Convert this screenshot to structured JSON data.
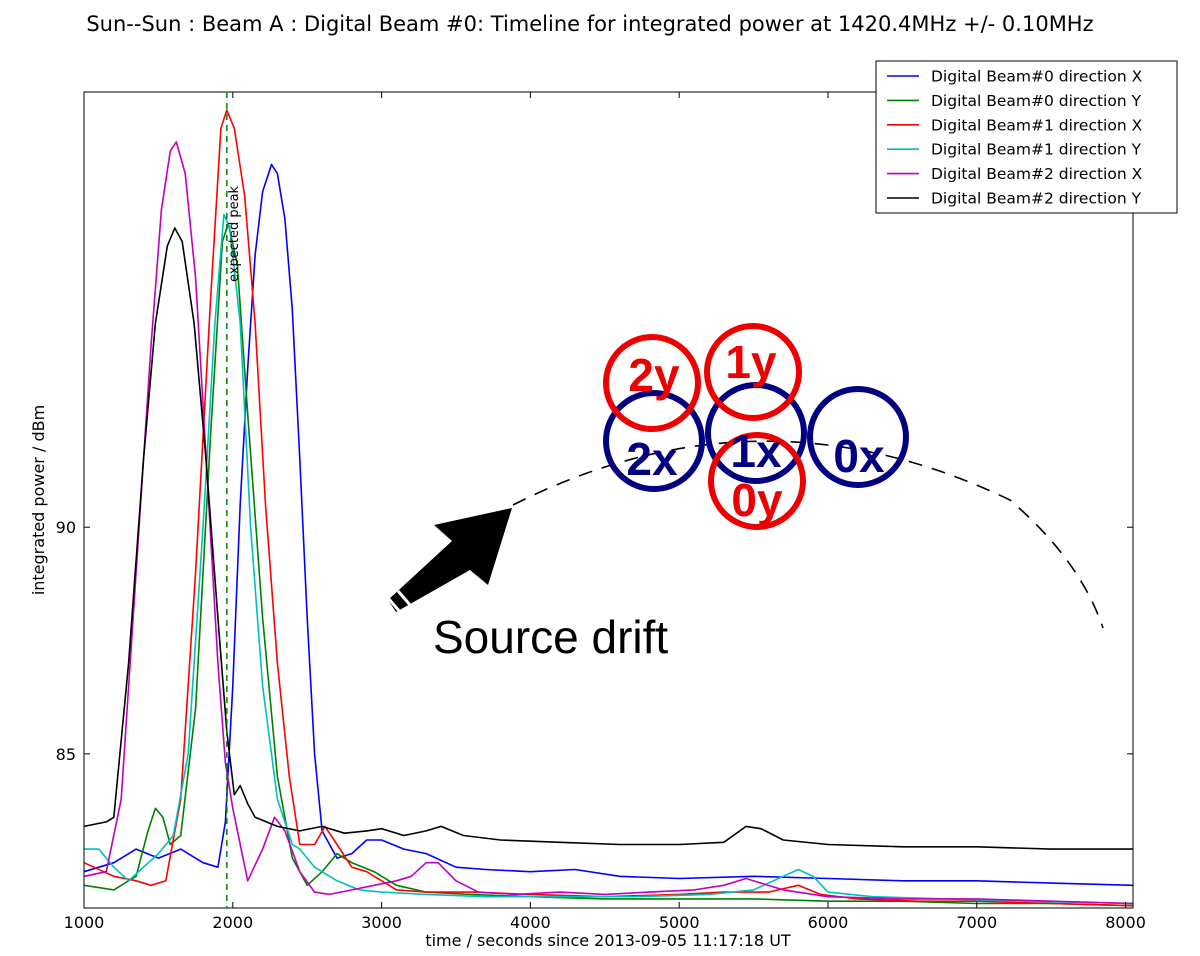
{
  "chart_data": {
    "type": "line",
    "title": "Sun--Sun : Beam A : Digital Beam #0: Timeline for integrated power at 1420.4MHz  +/-   0.10MHz",
    "xlabel": "time / seconds since 2013-09-05 11:17:18 UT",
    "ylabel": "integrated power / dBm",
    "xlim": [
      1000,
      8050
    ],
    "ylim": [
      81.6,
      99.6
    ],
    "x_ticks": [
      1000,
      2000,
      3000,
      4000,
      5000,
      6000,
      7000,
      8000
    ],
    "y_ticks": [
      85,
      90
    ],
    "legend_position": "top-right",
    "grid": false,
    "series": [
      {
        "name": "Digital Beam#0 direction X",
        "color": "#0000ff",
        "points": [
          [
            1000,
            82.4
          ],
          [
            1200,
            82.6
          ],
          [
            1350,
            82.9
          ],
          [
            1500,
            82.7
          ],
          [
            1650,
            82.9
          ],
          [
            1800,
            82.6
          ],
          [
            1900,
            82.5
          ],
          [
            1950,
            83.5
          ],
          [
            2000,
            86.5
          ],
          [
            2050,
            90.5
          ],
          [
            2100,
            93.5
          ],
          [
            2150,
            96.0
          ],
          [
            2200,
            97.4
          ],
          [
            2260,
            98.0
          ],
          [
            2300,
            97.8
          ],
          [
            2350,
            96.8
          ],
          [
            2400,
            94.8
          ],
          [
            2450,
            91.5
          ],
          [
            2500,
            88.0
          ],
          [
            2550,
            85.0
          ],
          [
            2600,
            83.3
          ],
          [
            2700,
            82.7
          ],
          [
            2800,
            82.8
          ],
          [
            2900,
            83.1
          ],
          [
            3000,
            83.1
          ],
          [
            3150,
            82.9
          ],
          [
            3300,
            82.8
          ],
          [
            3500,
            82.5
          ],
          [
            3700,
            82.45
          ],
          [
            4000,
            82.4
          ],
          [
            4300,
            82.45
          ],
          [
            4600,
            82.3
          ],
          [
            5000,
            82.25
          ],
          [
            5500,
            82.3
          ],
          [
            6000,
            82.25
          ],
          [
            6500,
            82.2
          ],
          [
            7000,
            82.2
          ],
          [
            7500,
            82.15
          ],
          [
            8050,
            82.1
          ]
        ]
      },
      {
        "name": "Digital Beam#0 direction Y",
        "color": "#008000",
        "points": [
          [
            1000,
            82.1
          ],
          [
            1200,
            82.0
          ],
          [
            1350,
            82.3
          ],
          [
            1430,
            83.3
          ],
          [
            1480,
            83.8
          ],
          [
            1530,
            83.6
          ],
          [
            1580,
            83.0
          ],
          [
            1650,
            83.2
          ],
          [
            1750,
            86.0
          ],
          [
            1850,
            92.0
          ],
          [
            1930,
            96.3
          ],
          [
            1970,
            96.7
          ],
          [
            2030,
            95.8
          ],
          [
            2100,
            92.5
          ],
          [
            2200,
            88.0
          ],
          [
            2300,
            84.5
          ],
          [
            2400,
            82.7
          ],
          [
            2500,
            82.1
          ],
          [
            2600,
            82.4
          ],
          [
            2700,
            82.8
          ],
          [
            2800,
            82.6
          ],
          [
            2950,
            82.4
          ],
          [
            3100,
            82.1
          ],
          [
            3300,
            81.95
          ],
          [
            3600,
            81.9
          ],
          [
            4000,
            81.85
          ],
          [
            4500,
            81.8
          ],
          [
            5000,
            81.8
          ],
          [
            5500,
            81.8
          ],
          [
            6000,
            81.75
          ],
          [
            6500,
            81.75
          ],
          [
            7000,
            81.7
          ],
          [
            7500,
            81.7
          ],
          [
            8050,
            81.65
          ]
        ]
      },
      {
        "name": "Digital Beam#1 direction X",
        "color": "#ff0000",
        "points": [
          [
            1000,
            82.6
          ],
          [
            1200,
            82.3
          ],
          [
            1350,
            82.2
          ],
          [
            1450,
            82.1
          ],
          [
            1550,
            82.2
          ],
          [
            1650,
            84.0
          ],
          [
            1750,
            89.0
          ],
          [
            1850,
            95.0
          ],
          [
            1920,
            98.8
          ],
          [
            1960,
            99.2
          ],
          [
            2010,
            98.8
          ],
          [
            2080,
            97.3
          ],
          [
            2150,
            94.5
          ],
          [
            2220,
            90.5
          ],
          [
            2300,
            87.0
          ],
          [
            2380,
            84.5
          ],
          [
            2450,
            83.0
          ],
          [
            2550,
            83.0
          ],
          [
            2620,
            83.4
          ],
          [
            2700,
            83.0
          ],
          [
            2800,
            82.5
          ],
          [
            2900,
            82.4
          ],
          [
            3000,
            82.2
          ],
          [
            3100,
            82.0
          ],
          [
            3300,
            81.95
          ],
          [
            3600,
            81.95
          ],
          [
            4000,
            81.9
          ],
          [
            4500,
            81.85
          ],
          [
            5000,
            81.9
          ],
          [
            5300,
            81.95
          ],
          [
            5600,
            81.95
          ],
          [
            5800,
            82.1
          ],
          [
            5950,
            81.9
          ],
          [
            6200,
            81.8
          ],
          [
            6600,
            81.75
          ],
          [
            7000,
            81.75
          ],
          [
            7500,
            81.7
          ],
          [
            8050,
            81.65
          ]
        ]
      },
      {
        "name": "Digital Beam#1 direction Y",
        "color": "#00bfbf",
        "points": [
          [
            1000,
            82.9
          ],
          [
            1100,
            82.9
          ],
          [
            1200,
            82.5
          ],
          [
            1300,
            82.2
          ],
          [
            1400,
            82.5
          ],
          [
            1500,
            82.8
          ],
          [
            1600,
            83.2
          ],
          [
            1700,
            85.0
          ],
          [
            1800,
            90.0
          ],
          [
            1880,
            94.5
          ],
          [
            1940,
            96.9
          ],
          [
            1980,
            96.6
          ],
          [
            2050,
            94.5
          ],
          [
            2120,
            90.0
          ],
          [
            2200,
            86.5
          ],
          [
            2300,
            84.0
          ],
          [
            2400,
            83.0
          ],
          [
            2450,
            82.9
          ],
          [
            2550,
            82.5
          ],
          [
            2700,
            82.2
          ],
          [
            2850,
            82.0
          ],
          [
            3000,
            81.95
          ],
          [
            3300,
            81.9
          ],
          [
            3700,
            81.85
          ],
          [
            4200,
            81.85
          ],
          [
            4700,
            81.85
          ],
          [
            5200,
            81.9
          ],
          [
            5500,
            82.0
          ],
          [
            5700,
            82.3
          ],
          [
            5800,
            82.45
          ],
          [
            5900,
            82.3
          ],
          [
            6000,
            81.95
          ],
          [
            6300,
            81.85
          ],
          [
            6800,
            81.8
          ],
          [
            7300,
            81.75
          ],
          [
            8050,
            81.7
          ]
        ]
      },
      {
        "name": "Digital Beam#2 direction X",
        "color": "#bf00bf",
        "points": [
          [
            1000,
            82.3
          ],
          [
            1150,
            82.4
          ],
          [
            1250,
            84.0
          ],
          [
            1350,
            89.0
          ],
          [
            1450,
            94.0
          ],
          [
            1520,
            97.0
          ],
          [
            1580,
            98.3
          ],
          [
            1620,
            98.5
          ],
          [
            1680,
            97.8
          ],
          [
            1750,
            95.5
          ],
          [
            1830,
            91.0
          ],
          [
            1900,
            87.0
          ],
          [
            1950,
            84.8
          ],
          [
            2000,
            83.8
          ],
          [
            2100,
            82.2
          ],
          [
            2200,
            82.9
          ],
          [
            2280,
            83.6
          ],
          [
            2350,
            83.3
          ],
          [
            2450,
            82.4
          ],
          [
            2550,
            81.95
          ],
          [
            2650,
            81.9
          ],
          [
            2800,
            82.0
          ],
          [
            2950,
            82.1
          ],
          [
            3100,
            82.2
          ],
          [
            3200,
            82.3
          ],
          [
            3300,
            82.6
          ],
          [
            3380,
            82.6
          ],
          [
            3500,
            82.2
          ],
          [
            3650,
            81.95
          ],
          [
            3900,
            81.9
          ],
          [
            4200,
            81.95
          ],
          [
            4500,
            81.9
          ],
          [
            4800,
            81.95
          ],
          [
            5100,
            82.0
          ],
          [
            5300,
            82.1
          ],
          [
            5450,
            82.25
          ],
          [
            5550,
            82.15
          ],
          [
            5700,
            82.0
          ],
          [
            6000,
            81.85
          ],
          [
            6500,
            81.8
          ],
          [
            7000,
            81.8
          ],
          [
            7500,
            81.75
          ],
          [
            8050,
            81.7
          ]
        ]
      },
      {
        "name": "Digital Beam#2 direction Y",
        "color": "#000000",
        "points": [
          [
            1000,
            83.4
          ],
          [
            1150,
            83.5
          ],
          [
            1200,
            83.6
          ],
          [
            1300,
            87.0
          ],
          [
            1400,
            91.5
          ],
          [
            1480,
            94.5
          ],
          [
            1560,
            96.2
          ],
          [
            1610,
            96.6
          ],
          [
            1660,
            96.3
          ],
          [
            1740,
            94.5
          ],
          [
            1820,
            91.5
          ],
          [
            1900,
            88.0
          ],
          [
            1960,
            85.5
          ],
          [
            2010,
            84.1
          ],
          [
            2050,
            84.3
          ],
          [
            2100,
            83.9
          ],
          [
            2150,
            83.6
          ],
          [
            2300,
            83.4
          ],
          [
            2450,
            83.3
          ],
          [
            2600,
            83.4
          ],
          [
            2750,
            83.25
          ],
          [
            2900,
            83.3
          ],
          [
            3000,
            83.35
          ],
          [
            3150,
            83.2
          ],
          [
            3300,
            83.3
          ],
          [
            3400,
            83.4
          ],
          [
            3550,
            83.2
          ],
          [
            3800,
            83.1
          ],
          [
            4200,
            83.05
          ],
          [
            4600,
            83.0
          ],
          [
            5000,
            83.0
          ],
          [
            5300,
            83.05
          ],
          [
            5450,
            83.4
          ],
          [
            5550,
            83.35
          ],
          [
            5700,
            83.1
          ],
          [
            6000,
            83.0
          ],
          [
            6500,
            82.95
          ],
          [
            7000,
            82.95
          ],
          [
            7500,
            82.9
          ],
          [
            8050,
            82.9
          ]
        ]
      }
    ],
    "annotations": {
      "expected_peak": {
        "x": 1960,
        "label": "expected peak",
        "color": "#008000"
      },
      "source_drift_label": "Source drift",
      "beam_labels": [
        {
          "label": "2y",
          "color": "#ee0000"
        },
        {
          "label": "1y",
          "color": "#ee0000"
        },
        {
          "label": "2x",
          "color": "#000080"
        },
        {
          "label": "1x",
          "color": "#000080"
        },
        {
          "label": "0x",
          "color": "#000080"
        },
        {
          "label": "0y",
          "color": "#ee0000"
        }
      ]
    }
  }
}
